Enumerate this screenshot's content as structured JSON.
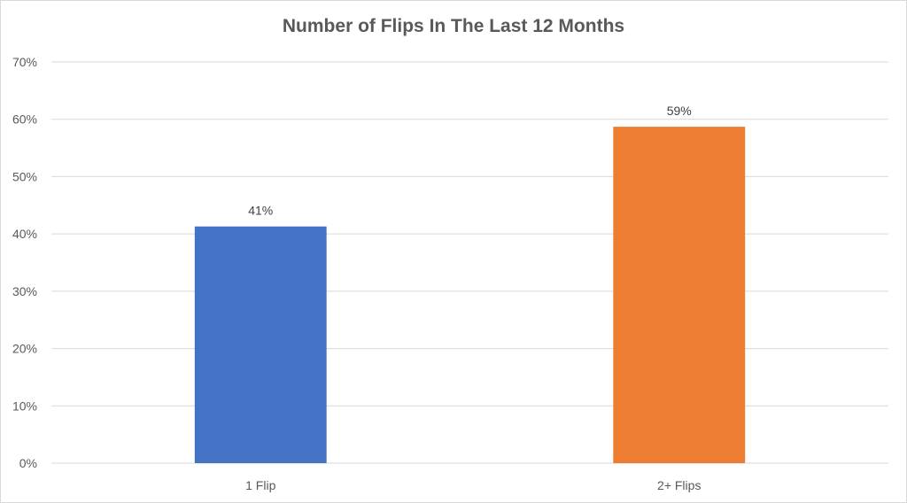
{
  "chart_data": {
    "type": "bar",
    "title": "Number of Flips In The Last 12 Months",
    "xlabel": "",
    "ylabel": "",
    "categories": [
      "1 Flip",
      "2+ Flips"
    ],
    "values": [
      41.3,
      58.7
    ],
    "data_labels": [
      "41%",
      "59%"
    ],
    "bar_colors": [
      "#4472c4",
      "#ed7d31"
    ],
    "ylim": [
      0,
      70
    ],
    "y_ticks": [
      0,
      10,
      20,
      30,
      40,
      50,
      60,
      70
    ],
    "y_tick_labels": [
      "0%",
      "10%",
      "20%",
      "30%",
      "40%",
      "50%",
      "60%",
      "70%"
    ],
    "grid": true,
    "legend": "none"
  },
  "colors": {
    "gridline": "#d9d9d9",
    "axis_text": "#595959",
    "title_text": "#595959"
  }
}
